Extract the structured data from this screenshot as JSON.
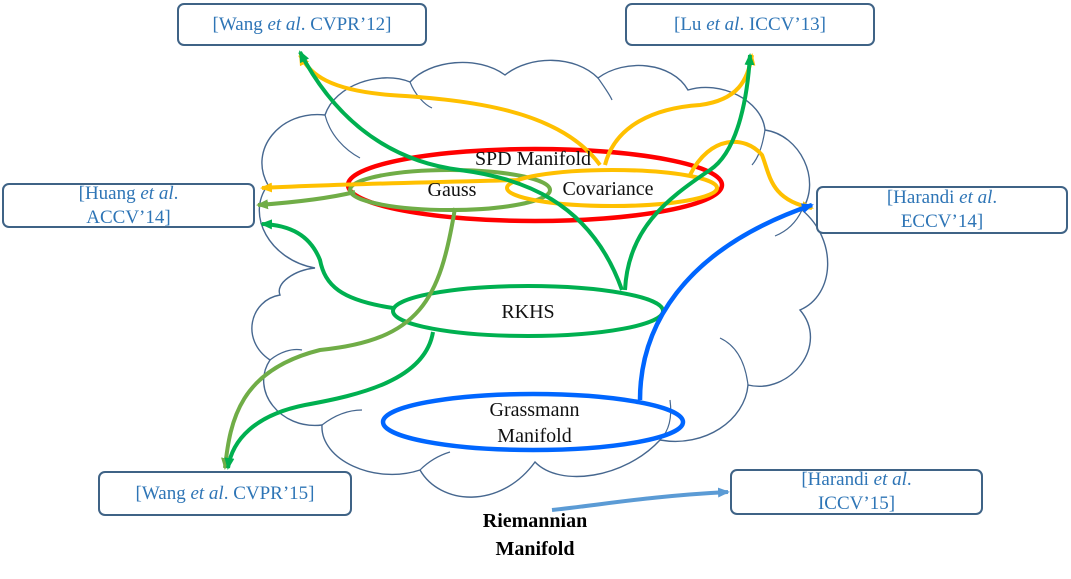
{
  "colors": {
    "cloud_outline": "#46678f",
    "spd": "#ff0000",
    "gauss": "#70ad47",
    "covariance": "#ffc000",
    "rkhs": "#00b050",
    "grassmann": "#0066ff",
    "riemannian_arrow": "#5b9bd5",
    "reference_text": "#2e75b6",
    "box_border": "#3f6386"
  },
  "labels": {
    "spd": "SPD Manifold",
    "gauss": "Gauss",
    "covariance": "Covariance",
    "rkhs": "RKHS",
    "grassmann_line1": "Grassmann",
    "grassmann_line2": "Manifold",
    "riemannian_line1": "Riemannian",
    "riemannian_line2": "Manifold"
  },
  "references": {
    "wang_cvpr12": {
      "pre": "[Wang ",
      "etal": "et al",
      "post": ". CVPR’12]"
    },
    "lu_iccv13": {
      "pre": "[Lu ",
      "etal": "et al",
      "post": ". ICCV’13]"
    },
    "huang_accv14": {
      "pre": "[Huang ",
      "etal": "et al",
      "post": ".",
      "line2": "ACCV’14]"
    },
    "harandi_eccv14": {
      "pre": "[Harandi ",
      "etal": "et al",
      "post": ".",
      "line2": "ECCV’14]"
    },
    "wang_cvpr15": {
      "pre": "[Wang ",
      "etal": "et al",
      "post": ". CVPR’15]"
    },
    "harandi_iccv15": {
      "pre": "[Harandi ",
      "etal": "et al",
      "post": ".",
      "line2": "ICCV’15]"
    }
  }
}
